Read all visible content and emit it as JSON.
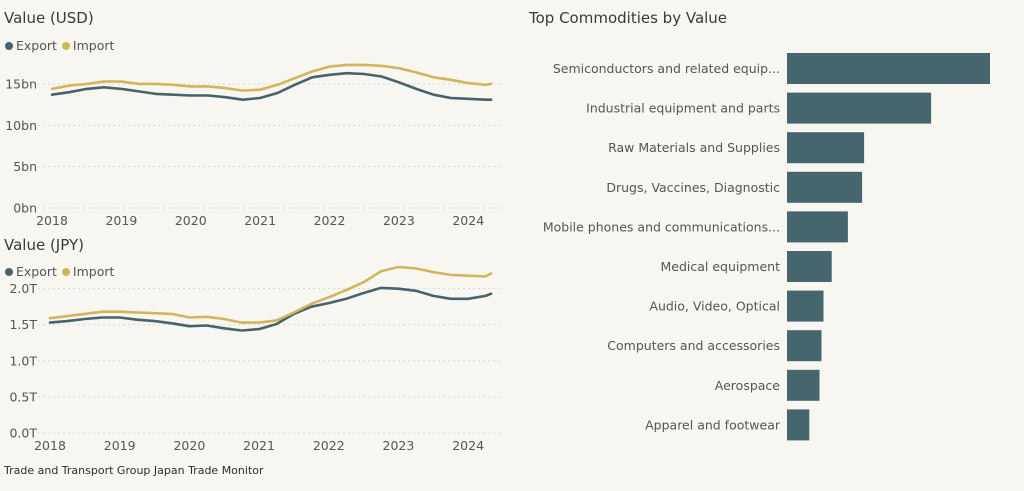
{
  "colors": {
    "export": "#46626a",
    "import": "#d2b55b",
    "bar": "#46666d",
    "grid": "#d9d8d2",
    "background": "#f7f6f1"
  },
  "footer": "Trade and Transport Group Japan Trade Monitor",
  "chart_data": [
    {
      "type": "line",
      "title": "Value (USD)",
      "legend": {
        "position": "top-left",
        "entries": [
          "Export",
          "Import"
        ]
      },
      "x_ticks": [
        "2018",
        "2019",
        "2020",
        "2021",
        "2022",
        "2023",
        "2024"
      ],
      "y_ticks": [
        "0bn",
        "5bn",
        "10bn",
        "15bn"
      ],
      "y_tick_values": [
        0,
        5,
        10,
        15
      ],
      "ylim": [
        0,
        18.5
      ],
      "xlim": [
        2018.0,
        2024.4
      ],
      "grid": "horizontal dotted",
      "x": [
        2018.0,
        2018.25,
        2018.5,
        2018.75,
        2019.0,
        2019.25,
        2019.5,
        2019.75,
        2020.0,
        2020.25,
        2020.5,
        2020.75,
        2021.0,
        2021.25,
        2021.5,
        2021.75,
        2022.0,
        2022.25,
        2022.5,
        2022.75,
        2023.0,
        2023.25,
        2023.5,
        2023.75,
        2024.0,
        2024.25,
        2024.33
      ],
      "series": [
        {
          "name": "Export",
          "values": [
            13.7,
            14.0,
            14.4,
            14.6,
            14.4,
            14.1,
            13.8,
            13.7,
            13.6,
            13.6,
            13.4,
            13.1,
            13.3,
            13.9,
            14.9,
            15.8,
            16.1,
            16.3,
            16.2,
            15.9,
            15.2,
            14.4,
            13.7,
            13.3,
            13.2,
            13.1,
            13.1
          ]
        },
        {
          "name": "Import",
          "values": [
            14.4,
            14.8,
            15.0,
            15.3,
            15.3,
            15.0,
            15.0,
            14.9,
            14.7,
            14.7,
            14.5,
            14.2,
            14.3,
            14.9,
            15.7,
            16.5,
            17.1,
            17.3,
            17.3,
            17.2,
            16.9,
            16.4,
            15.8,
            15.5,
            15.1,
            14.9,
            15.0
          ]
        }
      ]
    },
    {
      "type": "line",
      "title": "Value (JPY)",
      "legend": {
        "position": "top-left",
        "entries": [
          "Export",
          "Import"
        ]
      },
      "x_ticks": [
        "2018",
        "2019",
        "2020",
        "2021",
        "2022",
        "2023",
        "2024"
      ],
      "y_ticks": [
        "0.0T",
        "0.5T",
        "1.0T",
        "1.5T",
        "2.0T"
      ],
      "y_tick_values": [
        0,
        0.5,
        1.0,
        1.5,
        2.0
      ],
      "ylim": [
        0,
        2.3
      ],
      "xlim": [
        2018.0,
        2024.4
      ],
      "grid": "horizontal dotted",
      "x": [
        2018.0,
        2018.25,
        2018.5,
        2018.75,
        2019.0,
        2019.25,
        2019.5,
        2019.75,
        2020.0,
        2020.25,
        2020.5,
        2020.75,
        2021.0,
        2021.25,
        2021.5,
        2021.75,
        2022.0,
        2022.25,
        2022.5,
        2022.75,
        2023.0,
        2023.25,
        2023.5,
        2023.75,
        2024.0,
        2024.25,
        2024.33
      ],
      "series": [
        {
          "name": "Export",
          "values": [
            1.53,
            1.55,
            1.58,
            1.6,
            1.6,
            1.57,
            1.55,
            1.52,
            1.48,
            1.49,
            1.45,
            1.42,
            1.44,
            1.51,
            1.65,
            1.75,
            1.8,
            1.86,
            1.94,
            2.01,
            2.0,
            1.97,
            1.9,
            1.86,
            1.86,
            1.9,
            1.93
          ]
        },
        {
          "name": "Import",
          "values": [
            1.59,
            1.62,
            1.65,
            1.68,
            1.68,
            1.67,
            1.66,
            1.65,
            1.6,
            1.61,
            1.58,
            1.53,
            1.53,
            1.56,
            1.67,
            1.79,
            1.88,
            1.98,
            2.09,
            2.24,
            2.3,
            2.28,
            2.23,
            2.19,
            2.18,
            2.17,
            2.21
          ]
        }
      ]
    },
    {
      "type": "bar",
      "orientation": "horizontal",
      "title": "Top Commodities by Value",
      "categories": [
        "Semiconductors and related equip...",
        "Industrial equipment and parts",
        "Raw Materials and Supplies",
        "Drugs, Vaccines, Diagnostic",
        "Mobile phones and communications...",
        "Medical equipment",
        "Audio, Video, Optical",
        "Computers and accessories",
        "Aerospace",
        "Apparel and footwear"
      ],
      "values": [
        100,
        71,
        38,
        37,
        30,
        22,
        18,
        17,
        16,
        11
      ],
      "xlim": [
        0,
        100
      ]
    }
  ]
}
